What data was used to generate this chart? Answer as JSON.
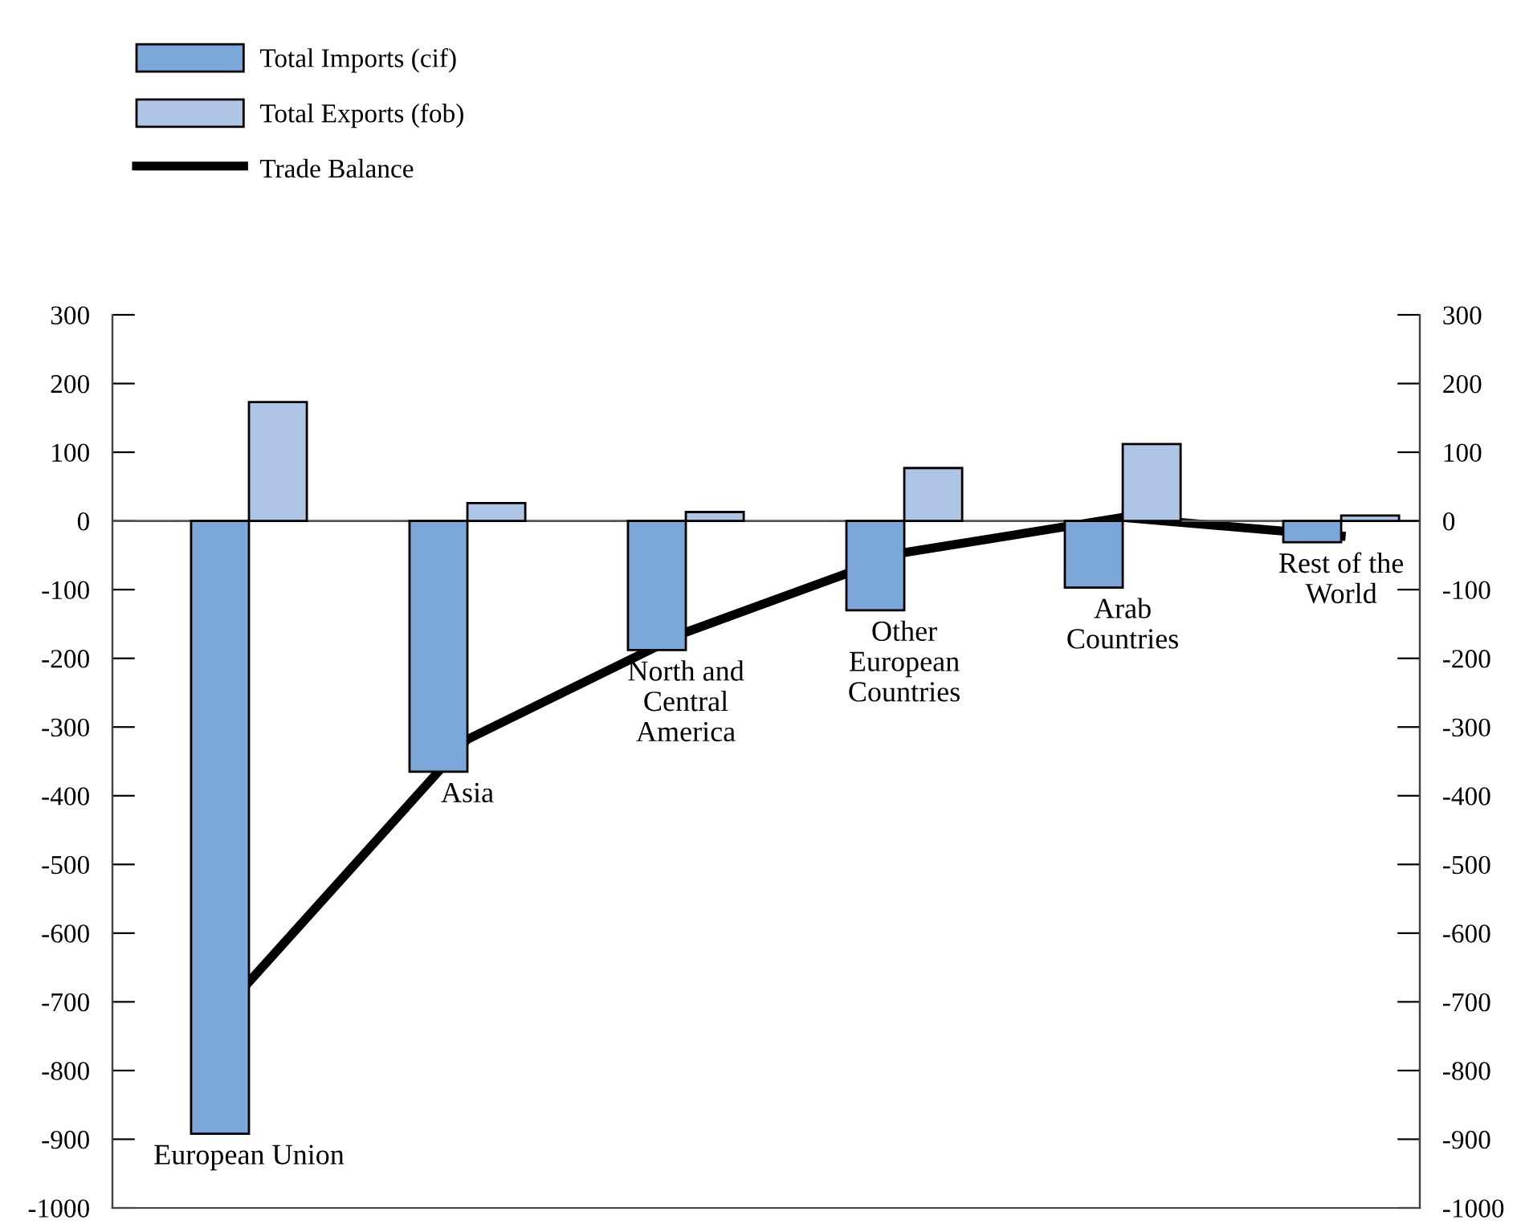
{
  "chart_data": {
    "type": "bar",
    "categories": [
      "European Union",
      "Asia",
      "North and\nCentral\nAmerica",
      "Other\nEuropean\nCountries",
      "Arab\nCountries",
      "Rest of the\nWorld"
    ],
    "series": [
      {
        "name": "Total Imports (cif)",
        "color": "#7ba7d9",
        "values": [
          -892,
          -365,
          -188,
          -130,
          -97,
          -31
        ]
      },
      {
        "name": "Total Exports (fob)",
        "color": "#afc5e5",
        "values": [
          173,
          26,
          13,
          77,
          112,
          8
        ]
      },
      {
        "name": "Trade Balance",
        "type": "line",
        "color": "#000000",
        "values": [
          -671,
          -318,
          -162,
          -46,
          5,
          -22
        ]
      }
    ],
    "ylim": [
      -1000,
      300
    ],
    "yticks": [
      -1000,
      -900,
      -800,
      -700,
      -600,
      -500,
      -400,
      -300,
      -200,
      -100,
      0,
      100,
      200,
      300
    ],
    "y2lim": [
      -1000,
      300
    ],
    "y2ticks": [
      -1000,
      -900,
      -800,
      -700,
      -600,
      -500,
      -400,
      -300,
      -200,
      -100,
      0,
      100,
      200,
      300
    ],
    "legend": "top left"
  }
}
